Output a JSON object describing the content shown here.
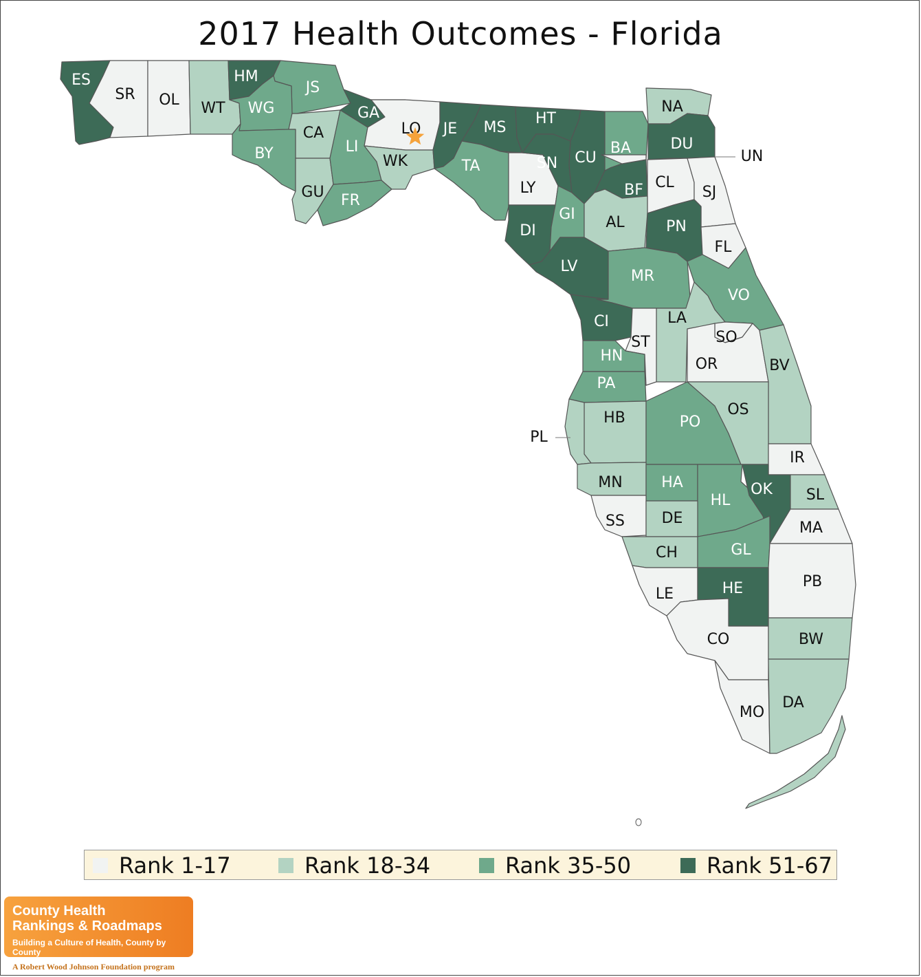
{
  "title": "2017 Health Outcomes - Florida",
  "colors": {
    "rank_1_17": "#f1f3f2",
    "rank_18_34": "#b3d3c2",
    "rank_35_50": "#6fa98b",
    "rank_51_67": "#3d6b57",
    "legend_bg": "#fcf4dc",
    "marker": "#f5a23a"
  },
  "legend": [
    {
      "label": "Rank 1-17",
      "color_key": "rank_1_17"
    },
    {
      "label": "Rank 18-34",
      "color_key": "rank_18_34"
    },
    {
      "label": "Rank 35-50",
      "color_key": "rank_35_50"
    },
    {
      "label": "Rank 51-67",
      "color_key": "rank_51_67"
    }
  ],
  "counties": [
    {
      "code": "ES",
      "rank_group": "51-67"
    },
    {
      "code": "SR",
      "rank_group": "1-17"
    },
    {
      "code": "OL",
      "rank_group": "1-17"
    },
    {
      "code": "WT",
      "rank_group": "18-34"
    },
    {
      "code": "HM",
      "rank_group": "51-67"
    },
    {
      "code": "JS",
      "rank_group": "35-50"
    },
    {
      "code": "WG",
      "rank_group": "35-50"
    },
    {
      "code": "CA",
      "rank_group": "18-34"
    },
    {
      "code": "BY",
      "rank_group": "35-50"
    },
    {
      "code": "GU",
      "rank_group": "18-34"
    },
    {
      "code": "GA",
      "rank_group": "51-67"
    },
    {
      "code": "LI",
      "rank_group": "35-50"
    },
    {
      "code": "FR",
      "rank_group": "35-50"
    },
    {
      "code": "LO",
      "rank_group": "1-17"
    },
    {
      "code": "WK",
      "rank_group": "18-34"
    },
    {
      "code": "JE",
      "rank_group": "51-67"
    },
    {
      "code": "MS",
      "rank_group": "51-67"
    },
    {
      "code": "TA",
      "rank_group": "35-50"
    },
    {
      "code": "HT",
      "rank_group": "51-67"
    },
    {
      "code": "LY",
      "rank_group": "1-17"
    },
    {
      "code": "SN",
      "rank_group": "51-67"
    },
    {
      "code": "CU",
      "rank_group": "51-67"
    },
    {
      "code": "DI",
      "rank_group": "51-67"
    },
    {
      "code": "GI",
      "rank_group": "35-50"
    },
    {
      "code": "BA",
      "rank_group": "35-50"
    },
    {
      "code": "BF",
      "rank_group": "51-67"
    },
    {
      "code": "NA",
      "rank_group": "18-34"
    },
    {
      "code": "DU",
      "rank_group": "51-67"
    },
    {
      "code": "UN",
      "rank_group": "1-17"
    },
    {
      "code": "CL",
      "rank_group": "1-17"
    },
    {
      "code": "SJ",
      "rank_group": "1-17"
    },
    {
      "code": "AL",
      "rank_group": "18-34"
    },
    {
      "code": "PN",
      "rank_group": "51-67"
    },
    {
      "code": "FL",
      "rank_group": "1-17"
    },
    {
      "code": "LV",
      "rank_group": "51-67"
    },
    {
      "code": "MR",
      "rank_group": "35-50"
    },
    {
      "code": "VO",
      "rank_group": "35-50"
    },
    {
      "code": "CI",
      "rank_group": "51-67"
    },
    {
      "code": "LA",
      "rank_group": "18-34"
    },
    {
      "code": "ST",
      "rank_group": "1-17"
    },
    {
      "code": "SO",
      "rank_group": "1-17"
    },
    {
      "code": "OR",
      "rank_group": "1-17"
    },
    {
      "code": "BV",
      "rank_group": "18-34"
    },
    {
      "code": "HN",
      "rank_group": "35-50"
    },
    {
      "code": "PA",
      "rank_group": "35-50"
    },
    {
      "code": "HB",
      "rank_group": "18-34"
    },
    {
      "code": "PL",
      "rank_group": "18-34"
    },
    {
      "code": "PO",
      "rank_group": "35-50"
    },
    {
      "code": "OS",
      "rank_group": "18-34"
    },
    {
      "code": "IR",
      "rank_group": "1-17"
    },
    {
      "code": "MN",
      "rank_group": "18-34"
    },
    {
      "code": "HA",
      "rank_group": "35-50"
    },
    {
      "code": "HL",
      "rank_group": "35-50"
    },
    {
      "code": "OK",
      "rank_group": "51-67"
    },
    {
      "code": "SL",
      "rank_group": "18-34"
    },
    {
      "code": "SS",
      "rank_group": "1-17"
    },
    {
      "code": "DE",
      "rank_group": "18-34"
    },
    {
      "code": "MA",
      "rank_group": "1-17"
    },
    {
      "code": "CH",
      "rank_group": "18-34"
    },
    {
      "code": "GL",
      "rank_group": "35-50"
    },
    {
      "code": "PB",
      "rank_group": "1-17"
    },
    {
      "code": "LE",
      "rank_group": "1-17"
    },
    {
      "code": "HE",
      "rank_group": "51-67"
    },
    {
      "code": "CO",
      "rank_group": "1-17"
    },
    {
      "code": "BW",
      "rank_group": "18-34"
    },
    {
      "code": "MO",
      "rank_group": "1-17"
    },
    {
      "code": "DA",
      "rank_group": "18-34"
    }
  ],
  "logo": {
    "line1": "County Health",
    "line2": "Rankings & Roadmaps",
    "tagline": "Building a Culture of Health, County by County",
    "footer": "A Robert Wood Johnson Foundation program"
  }
}
